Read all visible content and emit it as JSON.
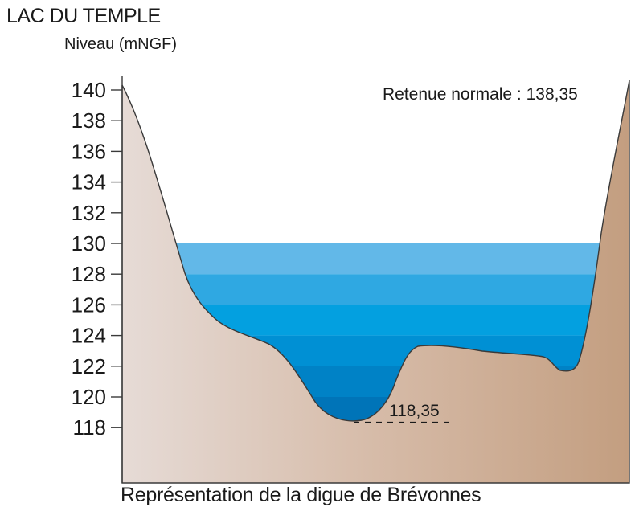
{
  "title": "LAC DU TEMPLE",
  "y_axis_label": "Niveau (mNGF)",
  "caption": "Représentation de la digue de Brévonnes",
  "annotation_normal": "Retenue normale : 138,35",
  "annotation_bottom": "118,35",
  "chart_data": {
    "type": "area",
    "y_ticks": [
      "140",
      "138",
      "136",
      "134",
      "132",
      "130",
      "128",
      "126",
      "124",
      "122",
      "120",
      "118"
    ],
    "y_tick_values": [
      140,
      138,
      136,
      134,
      132,
      130,
      128,
      126,
      124,
      122,
      120,
      118
    ],
    "y_range": [
      114.5,
      140.8
    ],
    "water_top_level": 130,
    "water_band_levels": [
      130,
      128,
      126,
      124,
      122,
      120
    ],
    "lake_bottom_level": 118.35,
    "normal_level_value": 138.35,
    "colors": {
      "water_bands": [
        "#62b8e8",
        "#2fa8e2",
        "#03a0e0",
        "#0090d4",
        "#0082c6",
        "#0074b8"
      ],
      "terrain_left": "#e6dbd6",
      "terrain_mid": "#d6bba8",
      "terrain_right": "#c39e80",
      "outline": "#3a3a3a"
    }
  }
}
